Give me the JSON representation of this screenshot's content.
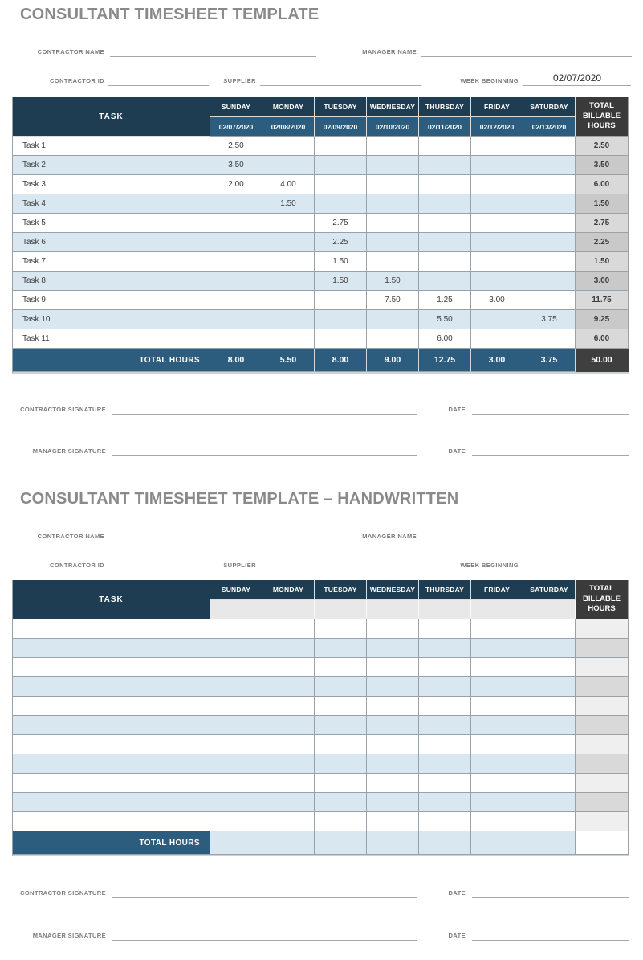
{
  "colors": {
    "header_navy": "#1e3d52",
    "date_row_blue": "#2c5d7e",
    "total_header_dark": "#3a3a3a",
    "alt_row_blue": "#d9e7f0",
    "total_col_gray": "#d9d9d9",
    "title_gray": "#8a8a8a"
  },
  "sections": [
    {
      "title": "CONSULTANT TIMESHEET TEMPLATE",
      "fields": {
        "contractor_name_label": "CONTRACTOR NAME",
        "manager_name_label": "MANAGER NAME",
        "contractor_id_label": "CONTRACTOR ID",
        "supplier_label": "SUPPLIER",
        "week_beginning_label": "WEEK BEGINNING",
        "week_beginning_value": "02/07/2020"
      },
      "table": {
        "task_header": "TASK",
        "days": [
          "SUNDAY",
          "MONDAY",
          "TUESDAY",
          "WEDNESDAY",
          "THURSDAY",
          "FRIDAY",
          "SATURDAY"
        ],
        "dates": [
          "02/07/2020",
          "02/08/2020",
          "02/09/2020",
          "02/10/2020",
          "02/11/2020",
          "02/12/2020",
          "02/13/2020"
        ],
        "total_header_lines": [
          "TOTAL",
          "BILLABLE",
          "HOURS"
        ],
        "rows": [
          {
            "task": "Task 1",
            "hours": [
              "2.50",
              "",
              "",
              "",
              "",
              "",
              ""
            ],
            "total": "2.50"
          },
          {
            "task": "Task 2",
            "hours": [
              "3.50",
              "",
              "",
              "",
              "",
              "",
              ""
            ],
            "total": "3.50"
          },
          {
            "task": "Task 3",
            "hours": [
              "2.00",
              "4.00",
              "",
              "",
              "",
              "",
              ""
            ],
            "total": "6.00"
          },
          {
            "task": "Task 4",
            "hours": [
              "",
              "1.50",
              "",
              "",
              "",
              "",
              ""
            ],
            "total": "1.50"
          },
          {
            "task": "Task 5",
            "hours": [
              "",
              "",
              "2.75",
              "",
              "",
              "",
              ""
            ],
            "total": "2.75"
          },
          {
            "task": "Task 6",
            "hours": [
              "",
              "",
              "2.25",
              "",
              "",
              "",
              ""
            ],
            "total": "2.25"
          },
          {
            "task": "Task 7",
            "hours": [
              "",
              "",
              "1.50",
              "",
              "",
              "",
              ""
            ],
            "total": "1.50"
          },
          {
            "task": "Task 8",
            "hours": [
              "",
              "",
              "1.50",
              "1.50",
              "",
              "",
              ""
            ],
            "total": "3.00"
          },
          {
            "task": "Task 9",
            "hours": [
              "",
              "",
              "",
              "7.50",
              "1.25",
              "3.00",
              ""
            ],
            "total": "11.75"
          },
          {
            "task": "Task 10",
            "hours": [
              "",
              "",
              "",
              "",
              "5.50",
              "",
              "3.75"
            ],
            "total": "9.25"
          },
          {
            "task": "Task 11",
            "hours": [
              "",
              "",
              "",
              "",
              "6.00",
              "",
              ""
            ],
            "total": "6.00"
          }
        ],
        "total_row": {
          "label": "TOTAL HOURS",
          "hours": [
            "8.00",
            "5.50",
            "8.00",
            "9.00",
            "12.75",
            "3.00",
            "3.75"
          ],
          "total": "50.00"
        }
      },
      "signatures": {
        "contractor_label": "CONTRACTOR SIGNATURE",
        "manager_label": "MANAGER SIGNATURE",
        "date_label": "DATE"
      }
    },
    {
      "title": "CONSULTANT TIMESHEET TEMPLATE – HANDWRITTEN",
      "fields": {
        "contractor_name_label": "CONTRACTOR NAME",
        "manager_name_label": "MANAGER NAME",
        "contractor_id_label": "CONTRACTOR ID",
        "supplier_label": "SUPPLIER",
        "week_beginning_label": "WEEK BEGINNING",
        "week_beginning_value": ""
      },
      "table": {
        "task_header": "TASK",
        "days": [
          "SUNDAY",
          "MONDAY",
          "TUESDAY",
          "WEDNESDAY",
          "THURSDAY",
          "FRIDAY",
          "SATURDAY"
        ],
        "dates": [
          "",
          "",
          "",
          "",
          "",
          "",
          ""
        ],
        "total_header_lines": [
          "TOTAL",
          "BILLABLE",
          "HOURS"
        ],
        "rows": [
          {
            "task": "",
            "hours": [
              "",
              "",
              "",
              "",
              "",
              "",
              ""
            ],
            "total": ""
          },
          {
            "task": "",
            "hours": [
              "",
              "",
              "",
              "",
              "",
              "",
              ""
            ],
            "total": ""
          },
          {
            "task": "",
            "hours": [
              "",
              "",
              "",
              "",
              "",
              "",
              ""
            ],
            "total": ""
          },
          {
            "task": "",
            "hours": [
              "",
              "",
              "",
              "",
              "",
              "",
              ""
            ],
            "total": ""
          },
          {
            "task": "",
            "hours": [
              "",
              "",
              "",
              "",
              "",
              "",
              ""
            ],
            "total": ""
          },
          {
            "task": "",
            "hours": [
              "",
              "",
              "",
              "",
              "",
              "",
              ""
            ],
            "total": ""
          },
          {
            "task": "",
            "hours": [
              "",
              "",
              "",
              "",
              "",
              "",
              ""
            ],
            "total": ""
          },
          {
            "task": "",
            "hours": [
              "",
              "",
              "",
              "",
              "",
              "",
              ""
            ],
            "total": ""
          },
          {
            "task": "",
            "hours": [
              "",
              "",
              "",
              "",
              "",
              "",
              ""
            ],
            "total": ""
          },
          {
            "task": "",
            "hours": [
              "",
              "",
              "",
              "",
              "",
              "",
              ""
            ],
            "total": ""
          },
          {
            "task": "",
            "hours": [
              "",
              "",
              "",
              "",
              "",
              "",
              ""
            ],
            "total": ""
          }
        ],
        "total_row": {
          "label": "TOTAL HOURS",
          "hours": [
            "",
            "",
            "",
            "",
            "",
            "",
            ""
          ],
          "total": ""
        }
      },
      "signatures": {
        "contractor_label": "CONTRACTOR SIGNATURE",
        "manager_label": "MANAGER SIGNATURE",
        "date_label": "DATE"
      }
    }
  ]
}
